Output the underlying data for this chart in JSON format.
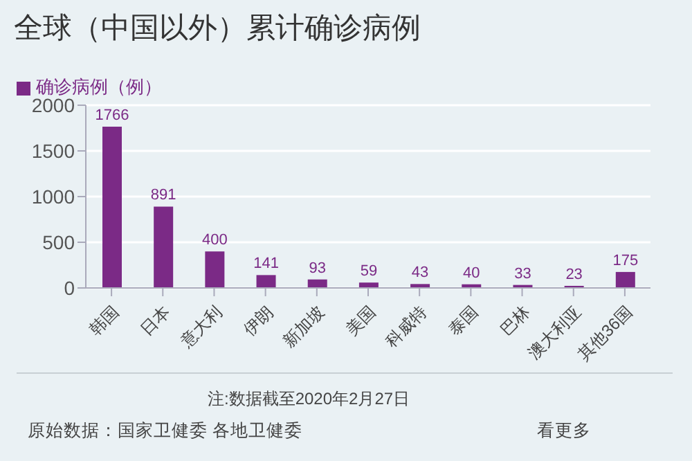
{
  "chart_data": {
    "type": "bar",
    "title": "全球（中国以外）累计确诊病例",
    "categories": [
      "韩国",
      "日本",
      "意大利",
      "伊朗",
      "新加坡",
      "美国",
      "科威特",
      "泰国",
      "巴林",
      "澳大利亚",
      "其他36国"
    ],
    "series": [
      {
        "name": "确诊病例（例）",
        "color": "#7b2a86",
        "values": [
          1766,
          891,
          400,
          141,
          93,
          59,
          43,
          40,
          33,
          23,
          175
        ]
      }
    ],
    "ylim": [
      0,
      2000
    ],
    "yticks": [
      0,
      500,
      1000,
      1500,
      2000
    ],
    "grid": "y",
    "legend": "top left",
    "data_labels": true,
    "annotations": [
      "注:数据截至2020年2月27日",
      "原始数据：国家卫健委 各地卫健委",
      "看更多"
    ]
  }
}
